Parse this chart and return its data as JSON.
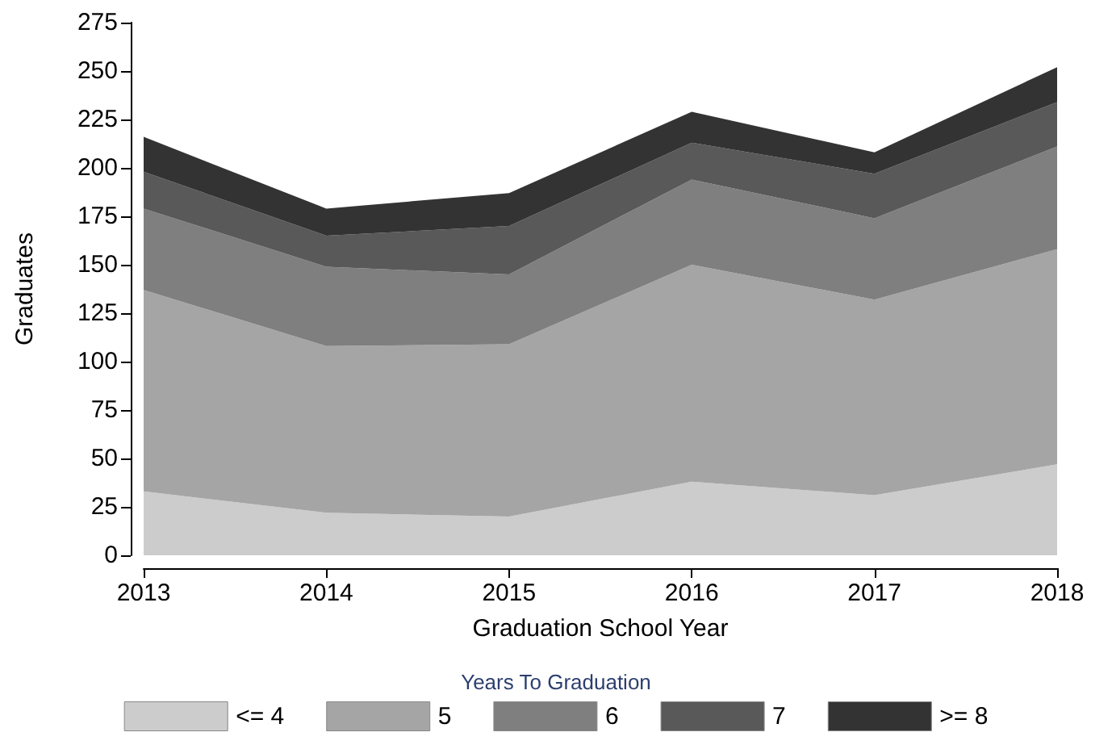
{
  "chart_data": {
    "type": "area",
    "stacked": true,
    "xlabel": "Graduation School Year",
    "ylabel": "Graduates",
    "legend_title": "Years To Graduation",
    "legend": "bottom",
    "grid": false,
    "categories": [
      "2013",
      "2014",
      "2015",
      "2016",
      "2017",
      "2018"
    ],
    "ylim": [
      0,
      275
    ],
    "yticks": [
      0,
      25,
      50,
      75,
      100,
      125,
      150,
      175,
      200,
      225,
      250,
      275
    ],
    "series": [
      {
        "name": "<= 4",
        "color": "#cccccc",
        "values": [
          33,
          22,
          20,
          38,
          31,
          47
        ]
      },
      {
        "name": "5",
        "color": "#a5a5a5",
        "values": [
          104,
          86,
          89,
          112,
          101,
          111
        ]
      },
      {
        "name": "6",
        "color": "#7f7f7f",
        "values": [
          42,
          41,
          36,
          44,
          42,
          53
        ]
      },
      {
        "name": "7",
        "color": "#595959",
        "values": [
          19,
          16,
          25,
          19,
          23,
          23
        ]
      },
      {
        "name": ">= 8",
        "color": "#333333",
        "values": [
          18,
          14,
          17,
          16,
          11,
          18
        ]
      }
    ]
  }
}
